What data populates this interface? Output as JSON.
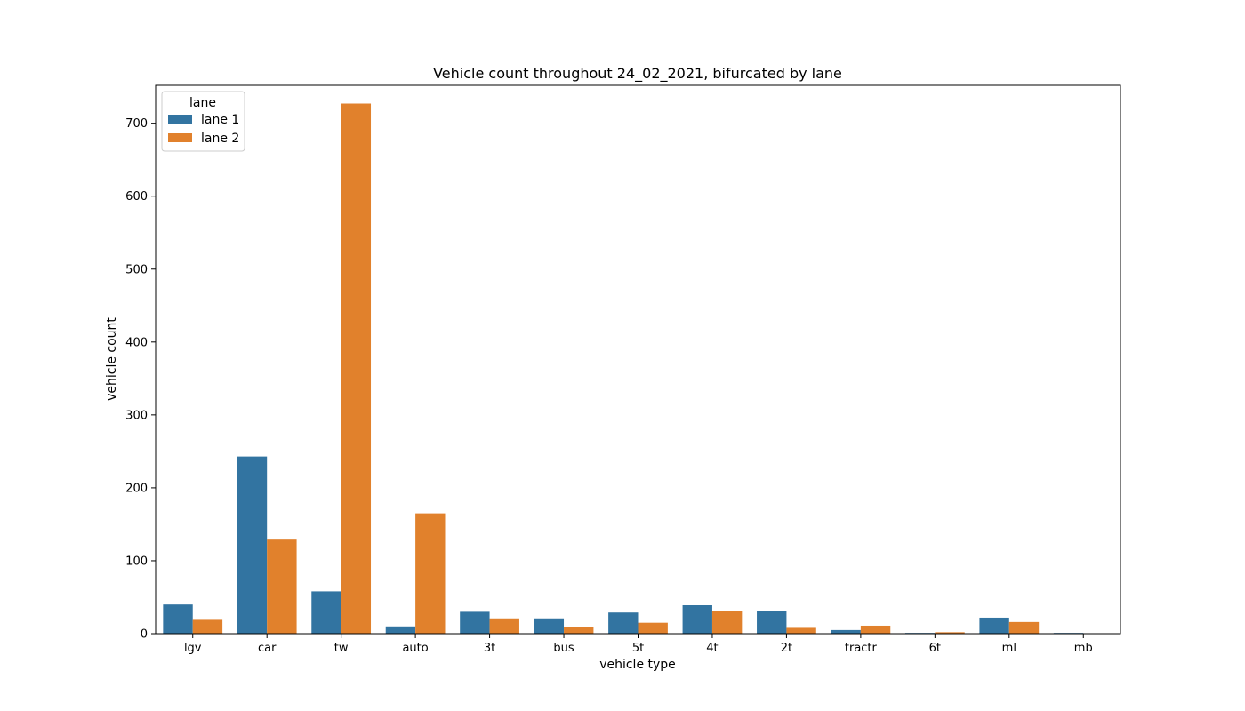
{
  "chart_data": {
    "type": "bar",
    "title": "Vehicle count throughout 24_02_2021, bifurcated by lane",
    "xlabel": "vehicle type",
    "ylabel": "vehicle count",
    "categories": [
      "lgv",
      "car",
      "tw",
      "auto",
      "3t",
      "bus",
      "5t",
      "4t",
      "2t",
      "tractr",
      "6t",
      "ml",
      "mb"
    ],
    "series": [
      {
        "name": "lane 1",
        "color": "#3274a1",
        "values": [
          40,
          243,
          58,
          10,
          30,
          21,
          29,
          39,
          31,
          5,
          1,
          22,
          1
        ]
      },
      {
        "name": "lane 2",
        "color": "#e1812c",
        "values": [
          19,
          129,
          727,
          165,
          21,
          9,
          15,
          31,
          8,
          11,
          2,
          16,
          0
        ]
      }
    ],
    "ylim": [
      0,
      752
    ],
    "yticks": [
      0,
      100,
      200,
      300,
      400,
      500,
      600,
      700
    ],
    "grid": false,
    "legend": {
      "title": "lane",
      "position": "top-left"
    }
  }
}
